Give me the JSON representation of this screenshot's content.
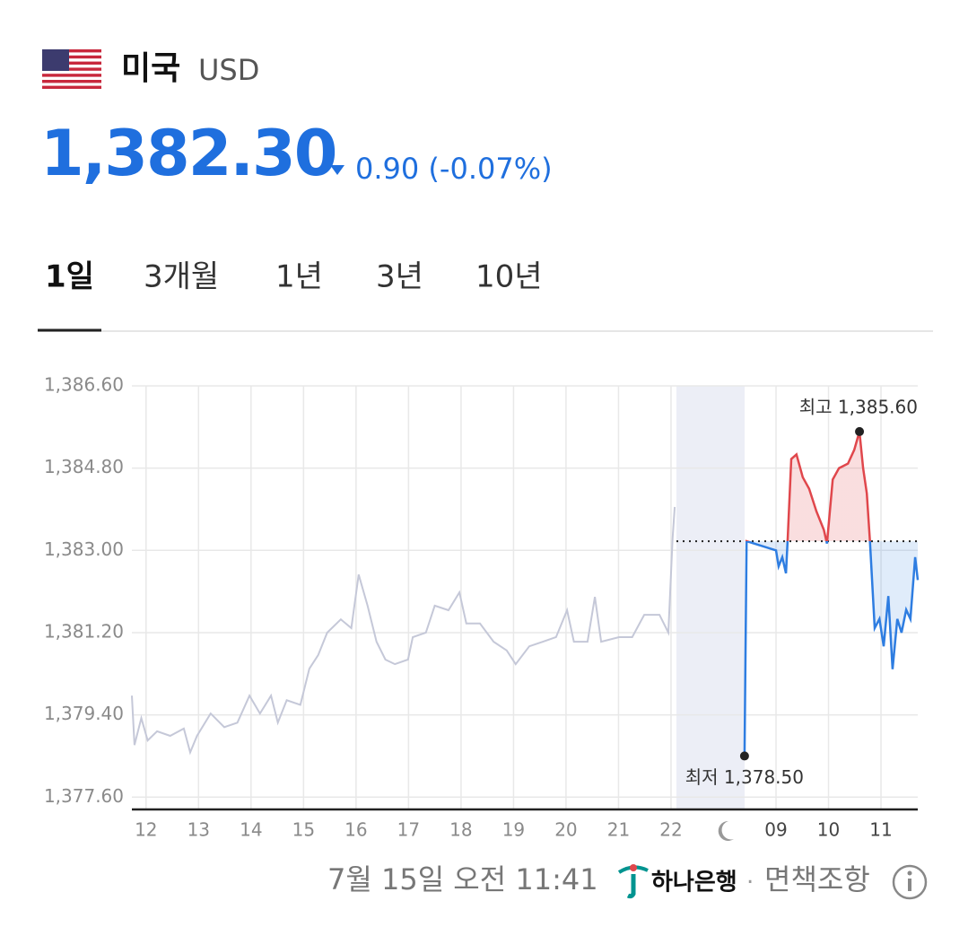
{
  "header": {
    "country": "미국",
    "code": "USD",
    "price": "1,382.30",
    "change": "0.90 (-0.07%)"
  },
  "tabs": [
    "1일",
    "3개월",
    "1년",
    "3년",
    "10년"
  ],
  "chart_data": {
    "type": "line",
    "xlim": [
      -0.27,
      14.7
    ],
    "xticks": [
      {
        "value": 0,
        "label": "12"
      },
      {
        "value": 1,
        "label": "13"
      },
      {
        "value": 2,
        "label": "14"
      },
      {
        "value": 3,
        "label": "15"
      },
      {
        "value": 4,
        "label": "16"
      },
      {
        "value": 5,
        "label": "17"
      },
      {
        "value": 6,
        "label": "18"
      },
      {
        "value": 7,
        "label": "19"
      },
      {
        "value": 8,
        "label": "20"
      },
      {
        "value": 9,
        "label": "21"
      },
      {
        "value": 10,
        "label": "22"
      },
      {
        "value": 12,
        "label": "09"
      },
      {
        "value": 13,
        "label": "10"
      },
      {
        "value": 14,
        "label": "11"
      }
    ],
    "ylim": [
      1377.33,
      1386.6
    ],
    "yticks": [
      {
        "value": 1386.6,
        "label": "1,386.60"
      },
      {
        "value": 1384.8,
        "label": "1,384.80"
      },
      {
        "value": 1383,
        "label": "1,383.00"
      },
      {
        "value": 1381.2,
        "label": "1,381.20"
      },
      {
        "value": 1379.4,
        "label": "1,379.40"
      },
      {
        "value": 1377.6,
        "label": "1,377.60"
      }
    ],
    "grid": true,
    "reference": 1383.2,
    "series": [
      {
        "color": "#c5c8d8",
        "x": [
          -0.27,
          -0.22,
          -0.09,
          0.03,
          0.21,
          0.46,
          0.72,
          0.84,
          0.97,
          1.23,
          1.49,
          1.74,
          1.97,
          2.17,
          2.38,
          2.51,
          2.68,
          2.94,
          3.11,
          3.28,
          3.45,
          3.71,
          3.91,
          4.05,
          4.22,
          4.39,
          4.56,
          4.74,
          4.99,
          5.08,
          5.33,
          5.5,
          5.76,
          5.97,
          6.1,
          6.36,
          6.62,
          6.87,
          7.04,
          7.3,
          7.56,
          7.81,
          8.02,
          8.15,
          8.41,
          8.55,
          8.67,
          9.01,
          9.26,
          9.49,
          9.78,
          9.95,
          10.03,
          10.07
        ],
        "values": [
          1379.82,
          1378.74,
          1379.33,
          1378.84,
          1379.04,
          1378.94,
          1379.1,
          1378.58,
          1378.94,
          1379.43,
          1379.13,
          1379.23,
          1379.82,
          1379.43,
          1379.82,
          1379.23,
          1379.72,
          1379.62,
          1380.41,
          1380.71,
          1381.2,
          1381.49,
          1381.3,
          1382.47,
          1381.79,
          1381.0,
          1380.61,
          1380.51,
          1380.61,
          1381.1,
          1381.2,
          1381.79,
          1381.69,
          1382.08,
          1381.4,
          1381.4,
          1381.0,
          1380.81,
          1380.51,
          1380.9,
          1381.0,
          1381.1,
          1381.69,
          1381.0,
          1381.0,
          1381.98,
          1381.0,
          1381.1,
          1381.1,
          1381.59,
          1381.59,
          1381.2,
          1383.26,
          1383.95
        ]
      },
      {
        "up_color": "#e0474c",
        "down_color": "#2e7de1",
        "x": [
          11.4,
          11.44,
          12.0,
          12.05,
          12.12,
          12.19,
          12.22,
          12.29,
          12.39,
          12.51,
          12.63,
          12.77,
          12.91,
          12.97,
          13.08,
          13.2,
          13.37,
          13.49,
          13.59,
          13.66,
          13.73,
          13.79,
          13.88,
          13.97,
          14.05,
          14.14,
          14.22,
          14.31,
          14.39,
          14.48,
          14.56,
          14.65,
          14.7
        ],
        "values": [
          1378.5,
          1383.2,
          1383.0,
          1382.65,
          1382.85,
          1382.5,
          1383.2,
          1385.0,
          1385.1,
          1384.6,
          1384.35,
          1383.85,
          1383.45,
          1383.15,
          1384.55,
          1384.8,
          1384.9,
          1385.2,
          1385.6,
          1384.8,
          1384.25,
          1383.2,
          1381.3,
          1381.5,
          1380.9,
          1382.0,
          1380.4,
          1381.5,
          1381.2,
          1381.7,
          1381.5,
          1382.85,
          1382.35
        ]
      }
    ],
    "annotations": [
      {
        "text": "최고 1,385.60",
        "x": 13.59,
        "y": 1385.6
      },
      {
        "text": "최저 1,378.50",
        "x": 11.4,
        "y": 1378.5
      }
    ]
  },
  "footer": {
    "timestamp": "7월 15일 오전 11:41",
    "bank": "하나은행",
    "separator": "·",
    "disclaimer": "면책조항"
  }
}
